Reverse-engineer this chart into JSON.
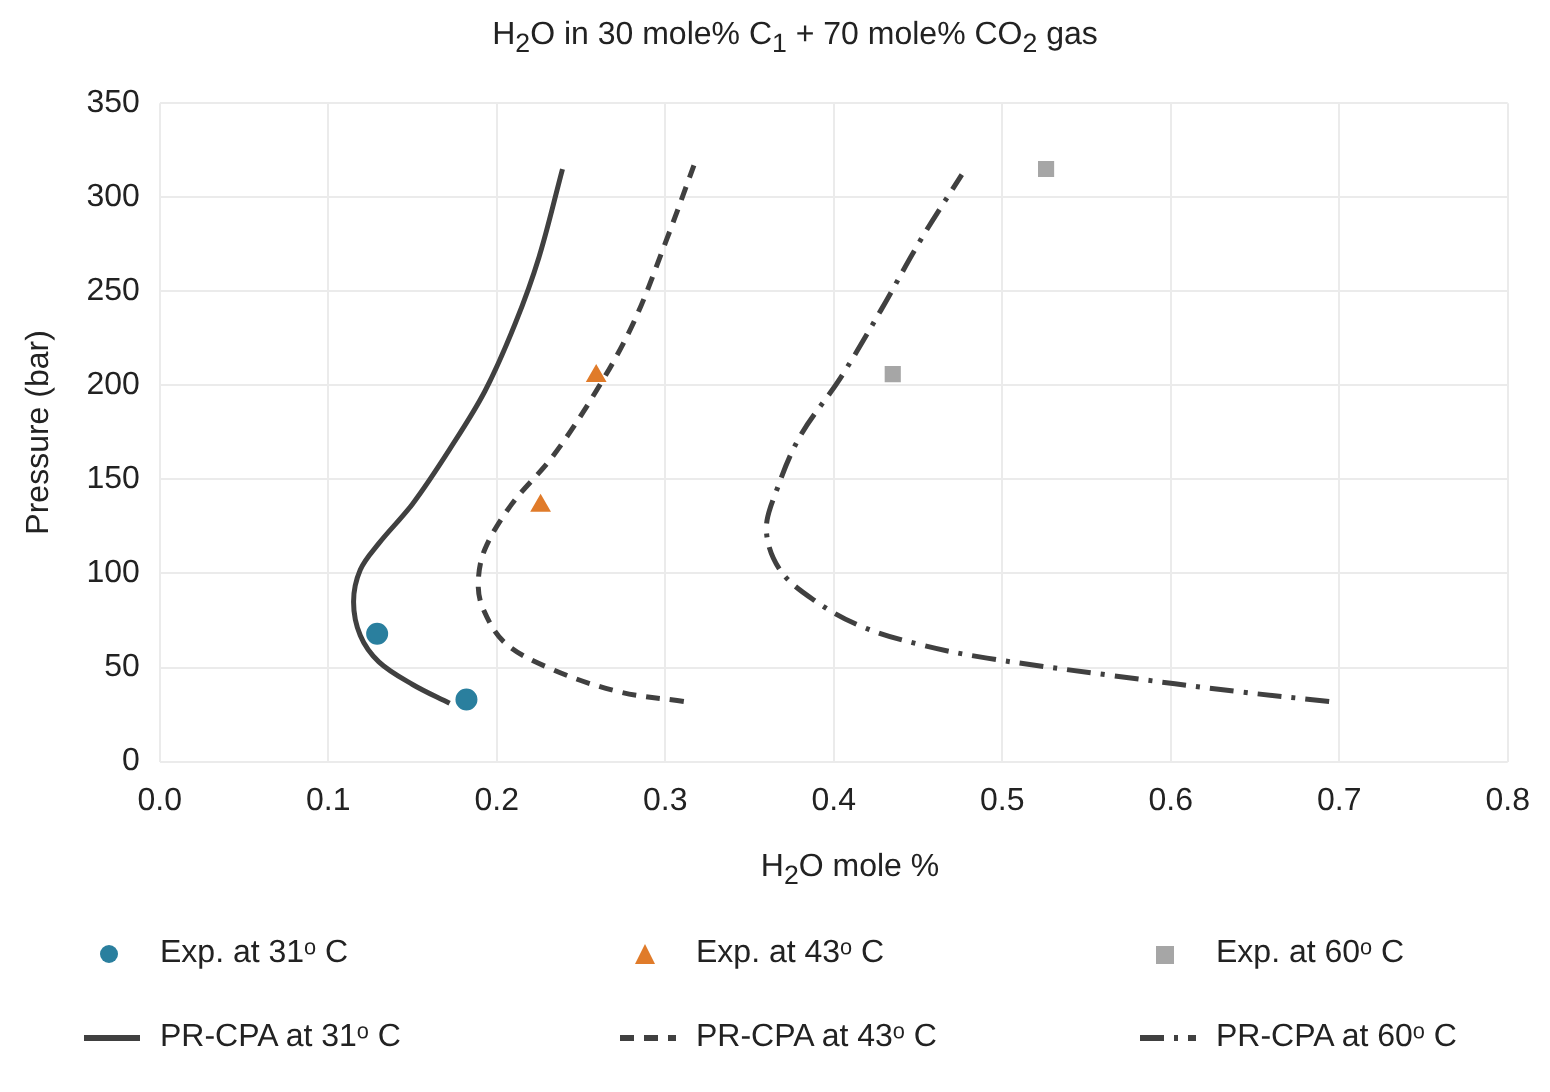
{
  "chart_data": {
    "type": "scatter",
    "title": "H$_{2}$O in 30 mole% C$_{1}$ +  70 mole% CO$_{2}$ gas",
    "xlabel": "H$_{2}$O mole %",
    "ylabel": "Pressure (bar)",
    "xlim": [
      0,
      0.8
    ],
    "xticks": [
      {
        "value": 0,
        "label": "0.0"
      },
      0.1,
      0.2,
      0.3,
      0.4,
      0.5,
      0.6,
      0.7,
      0.8
    ],
    "ylim": [
      0,
      350
    ],
    "yticks": [
      0,
      50,
      100,
      150,
      200,
      250,
      300,
      350
    ],
    "grid": true,
    "legend": "bottom",
    "series": [
      {
        "name": "Exp. at 31ᵒ C",
        "type": "scatter",
        "marker": "circle",
        "color": "#2a7f9e",
        "x": [
          0.129,
          0.182
        ],
        "values": [
          68,
          33
        ]
      },
      {
        "name": "Exp. at 43ᵒ C",
        "type": "scatter",
        "marker": "triangle",
        "color": "#e07b2a",
        "x": [
          0.226,
          0.259
        ],
        "values": [
          136,
          205
        ]
      },
      {
        "name": "Exp. at 60ᵒ C",
        "type": "scatter",
        "marker": "square",
        "color": "#a6a6a6",
        "x": [
          0.435,
          0.526
        ],
        "values": [
          206,
          315
        ]
      },
      {
        "name": "PR-CPA at 31ᵒ C",
        "type": "line",
        "marker": "none",
        "line_style": "solid",
        "color": "#404040",
        "x": [
          0.172,
          0.15,
          0.13,
          0.119,
          0.115,
          0.119,
          0.13,
          0.15,
          0.172,
          0.193,
          0.211,
          0.225,
          0.239
        ],
        "values": [
          31,
          41,
          53,
          67,
          85,
          102,
          116,
          137,
          166,
          197,
          233,
          268,
          315
        ]
      },
      {
        "name": "PR-CPA at 43ᵒ C",
        "type": "line",
        "marker": "none",
        "line_style": "dashed",
        "color": "#404040",
        "x": [
          0.311,
          0.273,
          0.233,
          0.205,
          0.192,
          0.189,
          0.193,
          0.209,
          0.233,
          0.259,
          0.281,
          0.301,
          0.317
        ],
        "values": [
          32,
          37,
          49,
          63,
          81,
          95,
          113,
          137,
          162,
          197,
          233,
          278,
          317
        ]
      },
      {
        "name": "PR-CPA at 60ᵒ C",
        "type": "line",
        "marker": "none",
        "line_style": "dashdot",
        "color": "#404040",
        "x": [
          0.694,
          0.642,
          0.563,
          0.491,
          0.452,
          0.416,
          0.388,
          0.368,
          0.36,
          0.366,
          0.38,
          0.404,
          0.428,
          0.452,
          0.476
        ],
        "values": [
          32,
          37,
          46,
          55,
          62,
          72,
          86,
          102,
          123,
          144,
          173,
          204,
          240,
          278,
          312
        ]
      }
    ]
  }
}
